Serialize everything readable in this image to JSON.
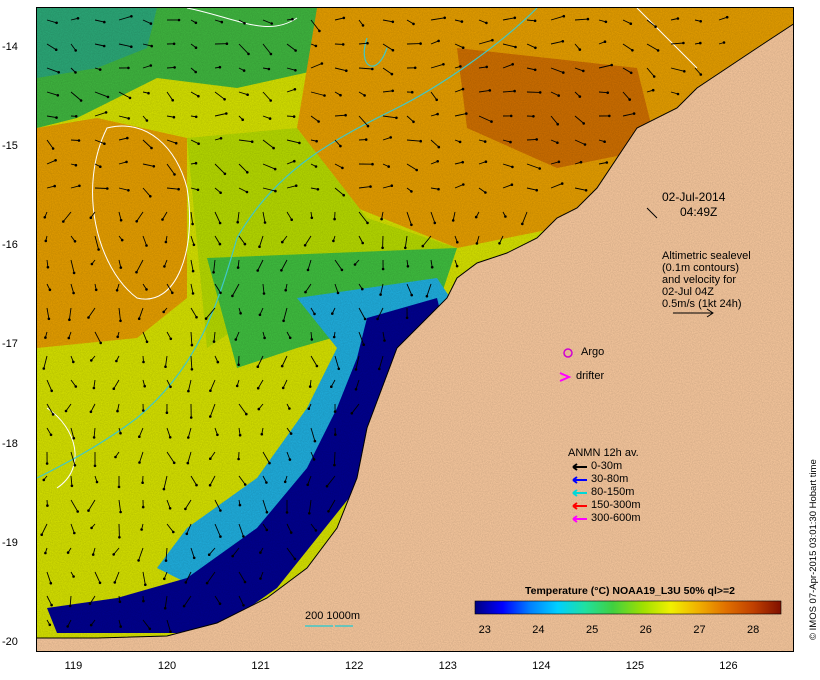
{
  "map": {
    "x_ticks": [
      "119",
      "120",
      "121",
      "122",
      "123",
      "124",
      "125",
      "126"
    ],
    "y_ticks": [
      "-14",
      "-15",
      "-16",
      "-17",
      "-18",
      "-19",
      "-20"
    ],
    "lon_range": [
      118.6,
      126.7
    ],
    "lat_range": [
      -20.1,
      -13.6
    ]
  },
  "annotations": {
    "date": "02-Jul-2014",
    "time": "04:49Z",
    "altimetry_lines": [
      "Altimetric sealevel",
      "(0.1m contours)",
      "and velocity for",
      "02-Jul 04Z",
      "0.5m/s (1kt 24h)"
    ],
    "argo_label": "Argo",
    "drifter_label": "drifter",
    "depth_label": "200  1000m"
  },
  "legend": {
    "title": "ANMN 12h av.",
    "items": [
      {
        "label": "0-30m",
        "color": "#000000"
      },
      {
        "label": "30-80m",
        "color": "#0000ff"
      },
      {
        "label": "80-150m",
        "color": "#00d8d8"
      },
      {
        "label": "150-300m",
        "color": "#ff0000"
      },
      {
        "label": "300-600m",
        "color": "#ff00ff"
      }
    ]
  },
  "colorbar": {
    "title": "Temperature (°C) NOAA19_L3U 50% ql>=2",
    "labels": [
      "23",
      "24",
      "25",
      "26",
      "27",
      "28"
    ],
    "range": [
      22.8,
      28.5
    ],
    "colors": [
      "#000080",
      "#0000ff",
      "#0080ff",
      "#00d0ff",
      "#20e0a0",
      "#40d040",
      "#a0e000",
      "#f0f000",
      "#f0b000",
      "#e07000",
      "#c04000",
      "#801000"
    ]
  },
  "credit": "© IMOS 07-Apr-2015 03:01:30 Hobart time",
  "colors": {
    "land": "#fbcba0",
    "contour": "#ffffff",
    "isobath": "#40c8c8",
    "argo": "#d000d0",
    "drifter": "#ff00ff"
  }
}
